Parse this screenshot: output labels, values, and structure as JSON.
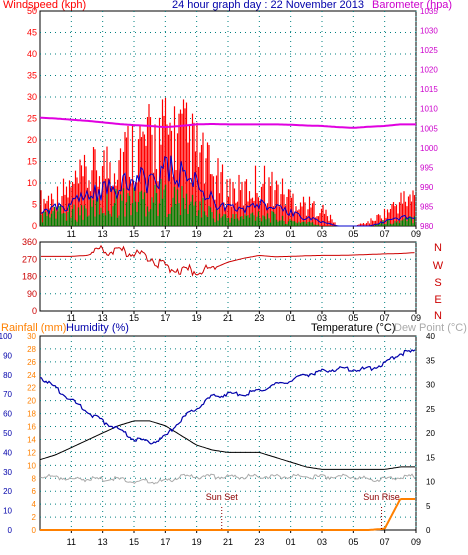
{
  "colors": {
    "wind": "#ff0000",
    "gust_fill": "#ff0000",
    "avg_wind": "#0000cc",
    "wind_lull": "#008000",
    "barometer": "#e000e0",
    "direction": "#cc0000",
    "rain": "#ff8000",
    "humidity": "#0000aa",
    "temperature": "#000000",
    "dew_point": "#aaaaaa",
    "label_windspeed": "#ff0000",
    "label_title": "#0000aa",
    "label_baro": "#cc00cc",
    "label_rain": "#ff8000",
    "label_humidity": "#0000aa",
    "label_temp": "#000000",
    "label_dew": "#aaaaaa",
    "sun_label": "#8b0000",
    "grid": "#008080"
  },
  "chart_data": [
    {
      "type": "line",
      "title": "24 hour graph day : 22 November 2013",
      "left_axis_label": "Windspeed (kph)",
      "right_axis_label": "Barometer (hpa)",
      "left_ticks": [
        "0",
        "5",
        "10",
        "15",
        "20",
        "25",
        "30",
        "35",
        "40",
        "45",
        "50"
      ],
      "right_ticks": [
        "980",
        "985",
        "990",
        "995",
        "1000",
        "1005",
        "1010",
        "1015",
        "1020",
        "1025",
        "1030",
        "1035"
      ],
      "ylim_left": [
        0,
        50
      ],
      "ylim_right": [
        980,
        1035
      ],
      "x_ticks": [
        "11",
        "13",
        "15",
        "17",
        "19",
        "21",
        "23",
        "01",
        "03",
        "05",
        "07",
        "09"
      ],
      "x_hours": [
        9,
        10,
        11,
        12,
        13,
        14,
        15,
        16,
        17,
        18,
        19,
        20,
        21,
        22,
        23,
        24,
        25,
        26,
        27,
        28,
        29,
        30,
        31,
        32,
        33
      ],
      "series": [
        {
          "name": "Barometer (hpa)",
          "values": [
            1007.7,
            1007.5,
            1007.2,
            1006.9,
            1006.5,
            1006.1,
            1005.8,
            1005.6,
            1005.3,
            1005.6,
            1006.0,
            1006.1,
            1006.0,
            1006.0,
            1006.0,
            1006.0,
            1005.9,
            1005.7,
            1005.6,
            1005.3,
            1005.1,
            1005.4,
            1005.6,
            1006.0,
            1006.0
          ]
        },
        {
          "name": "Windspeed (kph)",
          "values": [
            6,
            7,
            9,
            12,
            14,
            17,
            19,
            20,
            22,
            22,
            18,
            12,
            9,
            8,
            11,
            9,
            7,
            5,
            4,
            0,
            0,
            1,
            3,
            6,
            7
          ]
        },
        {
          "name": "Average",
          "values": [
            3,
            4,
            5,
            7,
            8,
            9,
            10,
            11,
            13,
            12,
            10,
            6,
            4,
            4,
            5,
            4,
            3,
            2,
            1,
            0,
            0,
            0,
            1,
            2,
            2
          ]
        },
        {
          "name": "Lull",
          "values": [
            2,
            3,
            3,
            4,
            5,
            6,
            6,
            7,
            7,
            6,
            5,
            3,
            2,
            2,
            3,
            2,
            1,
            1,
            0,
            0,
            0,
            0,
            1,
            1,
            2
          ]
        }
      ]
    },
    {
      "type": "line",
      "left_ticks": [
        "0",
        "90",
        "180",
        "270",
        "360"
      ],
      "right_ticks": [
        "N",
        "W",
        "S",
        "E",
        "N"
      ],
      "ylim": [
        0,
        360
      ],
      "x_hours": [
        9,
        10,
        11,
        12,
        13,
        14,
        15,
        16,
        17,
        18,
        19,
        20,
        21,
        22,
        23,
        24,
        25,
        26,
        27,
        28,
        29,
        30,
        31,
        32,
        33
      ],
      "series": [
        {
          "name": "Wind direction",
          "values": [
            285,
            285,
            285,
            290,
            315,
            310,
            305,
            280,
            230,
            215,
            212,
            220,
            255,
            275,
            290,
            283,
            285,
            288,
            290,
            290,
            292,
            295,
            298,
            300,
            305
          ]
        }
      ]
    },
    {
      "type": "line",
      "rain_label": "Rainfall (mm)",
      "humidity_label": "Humidity (%)",
      "temperature_label": "Temperature (°C)",
      "dewpoint_label": "Dew Point (°C)",
      "humidity_ticks": [
        "0",
        "10",
        "20",
        "30",
        "40",
        "50",
        "60",
        "70",
        "80",
        "90",
        "100"
      ],
      "rain_ticks": [
        "0",
        "2",
        "4",
        "6",
        "8",
        "10",
        "12",
        "14",
        "16",
        "18",
        "20",
        "22",
        "24",
        "26",
        "28",
        "30"
      ],
      "temp_ticks": [
        "0",
        "5",
        "10",
        "15",
        "20",
        "25",
        "30",
        "35",
        "40"
      ],
      "ylim_humidity": [
        0,
        100
      ],
      "ylim_rain": [
        0,
        30
      ],
      "ylim_temp": [
        0,
        40
      ],
      "x_ticks": [
        "11",
        "13",
        "15",
        "17",
        "19",
        "21",
        "23",
        "01",
        "03",
        "05",
        "07",
        "09"
      ],
      "x_hours": [
        9,
        10,
        11,
        12,
        13,
        14,
        15,
        16,
        17,
        18,
        19,
        20,
        21,
        22,
        23,
        24,
        25,
        26,
        27,
        28,
        29,
        30,
        31,
        32,
        33
      ],
      "series": [
        {
          "name": "Humidity (%)",
          "values": [
            79,
            73,
            67,
            61,
            56,
            52,
            47,
            45,
            48,
            57,
            63,
            69,
            70,
            70,
            72,
            75,
            77,
            80,
            82,
            83,
            83,
            83,
            86,
            91,
            92
          ]
        },
        {
          "name": "Temperature (°C)",
          "values": [
            14.5,
            15.5,
            17,
            18.5,
            20,
            21.5,
            22.5,
            22.5,
            21.5,
            19.5,
            17.5,
            16.5,
            16,
            16,
            16,
            15,
            14,
            13,
            12.5,
            12.5,
            12.5,
            12.5,
            12.5,
            13,
            13
          ]
        },
        {
          "name": "Dew Point (°C)",
          "values": [
            11,
            11,
            10.5,
            10.5,
            10.5,
            10.5,
            10,
            10,
            10,
            11,
            11,
            11,
            11,
            11,
            11,
            11,
            11,
            11,
            11,
            11,
            11,
            10.5,
            10.5,
            11,
            11
          ]
        },
        {
          "name": "Rainfall (mm)",
          "values": [
            0,
            0,
            0,
            0,
            0,
            0,
            0,
            0,
            0,
            0,
            0,
            0,
            0,
            0,
            0,
            0,
            0,
            0,
            0,
            0,
            0,
            0,
            0.2,
            4.8,
            4.8
          ]
        }
      ],
      "annotations": [
        "Sun Set",
        "Sun Rise"
      ],
      "annotation_hours": [
        20.6,
        30.8
      ]
    }
  ]
}
